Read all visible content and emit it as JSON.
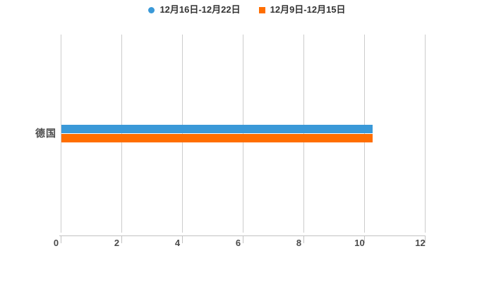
{
  "chart_data": {
    "type": "bar",
    "orientation": "horizontal",
    "title": "",
    "xlabel": "",
    "ylabel": "",
    "categories": [
      "德国"
    ],
    "series": [
      {
        "name": "12月16日-12月22日",
        "color": "#3A99D8",
        "legend_marker": "circle",
        "values": [
          10.3
        ]
      },
      {
        "name": "12月9日-12月15日",
        "color": "#FF6E00",
        "legend_marker": "square",
        "values": [
          10.3
        ]
      }
    ],
    "xlim": [
      0,
      12
    ],
    "xticks": [
      0,
      2,
      4,
      6,
      8,
      10,
      12
    ],
    "grid": true,
    "legend_position": "top-center",
    "colors": {
      "background": "#FFFFFF",
      "gridline": "#CCCCCC",
      "axis": "#C2C2C2",
      "tick_label": "#4A4A4A",
      "category_label": "#4A4A4A",
      "legend_text": "#333333"
    }
  }
}
